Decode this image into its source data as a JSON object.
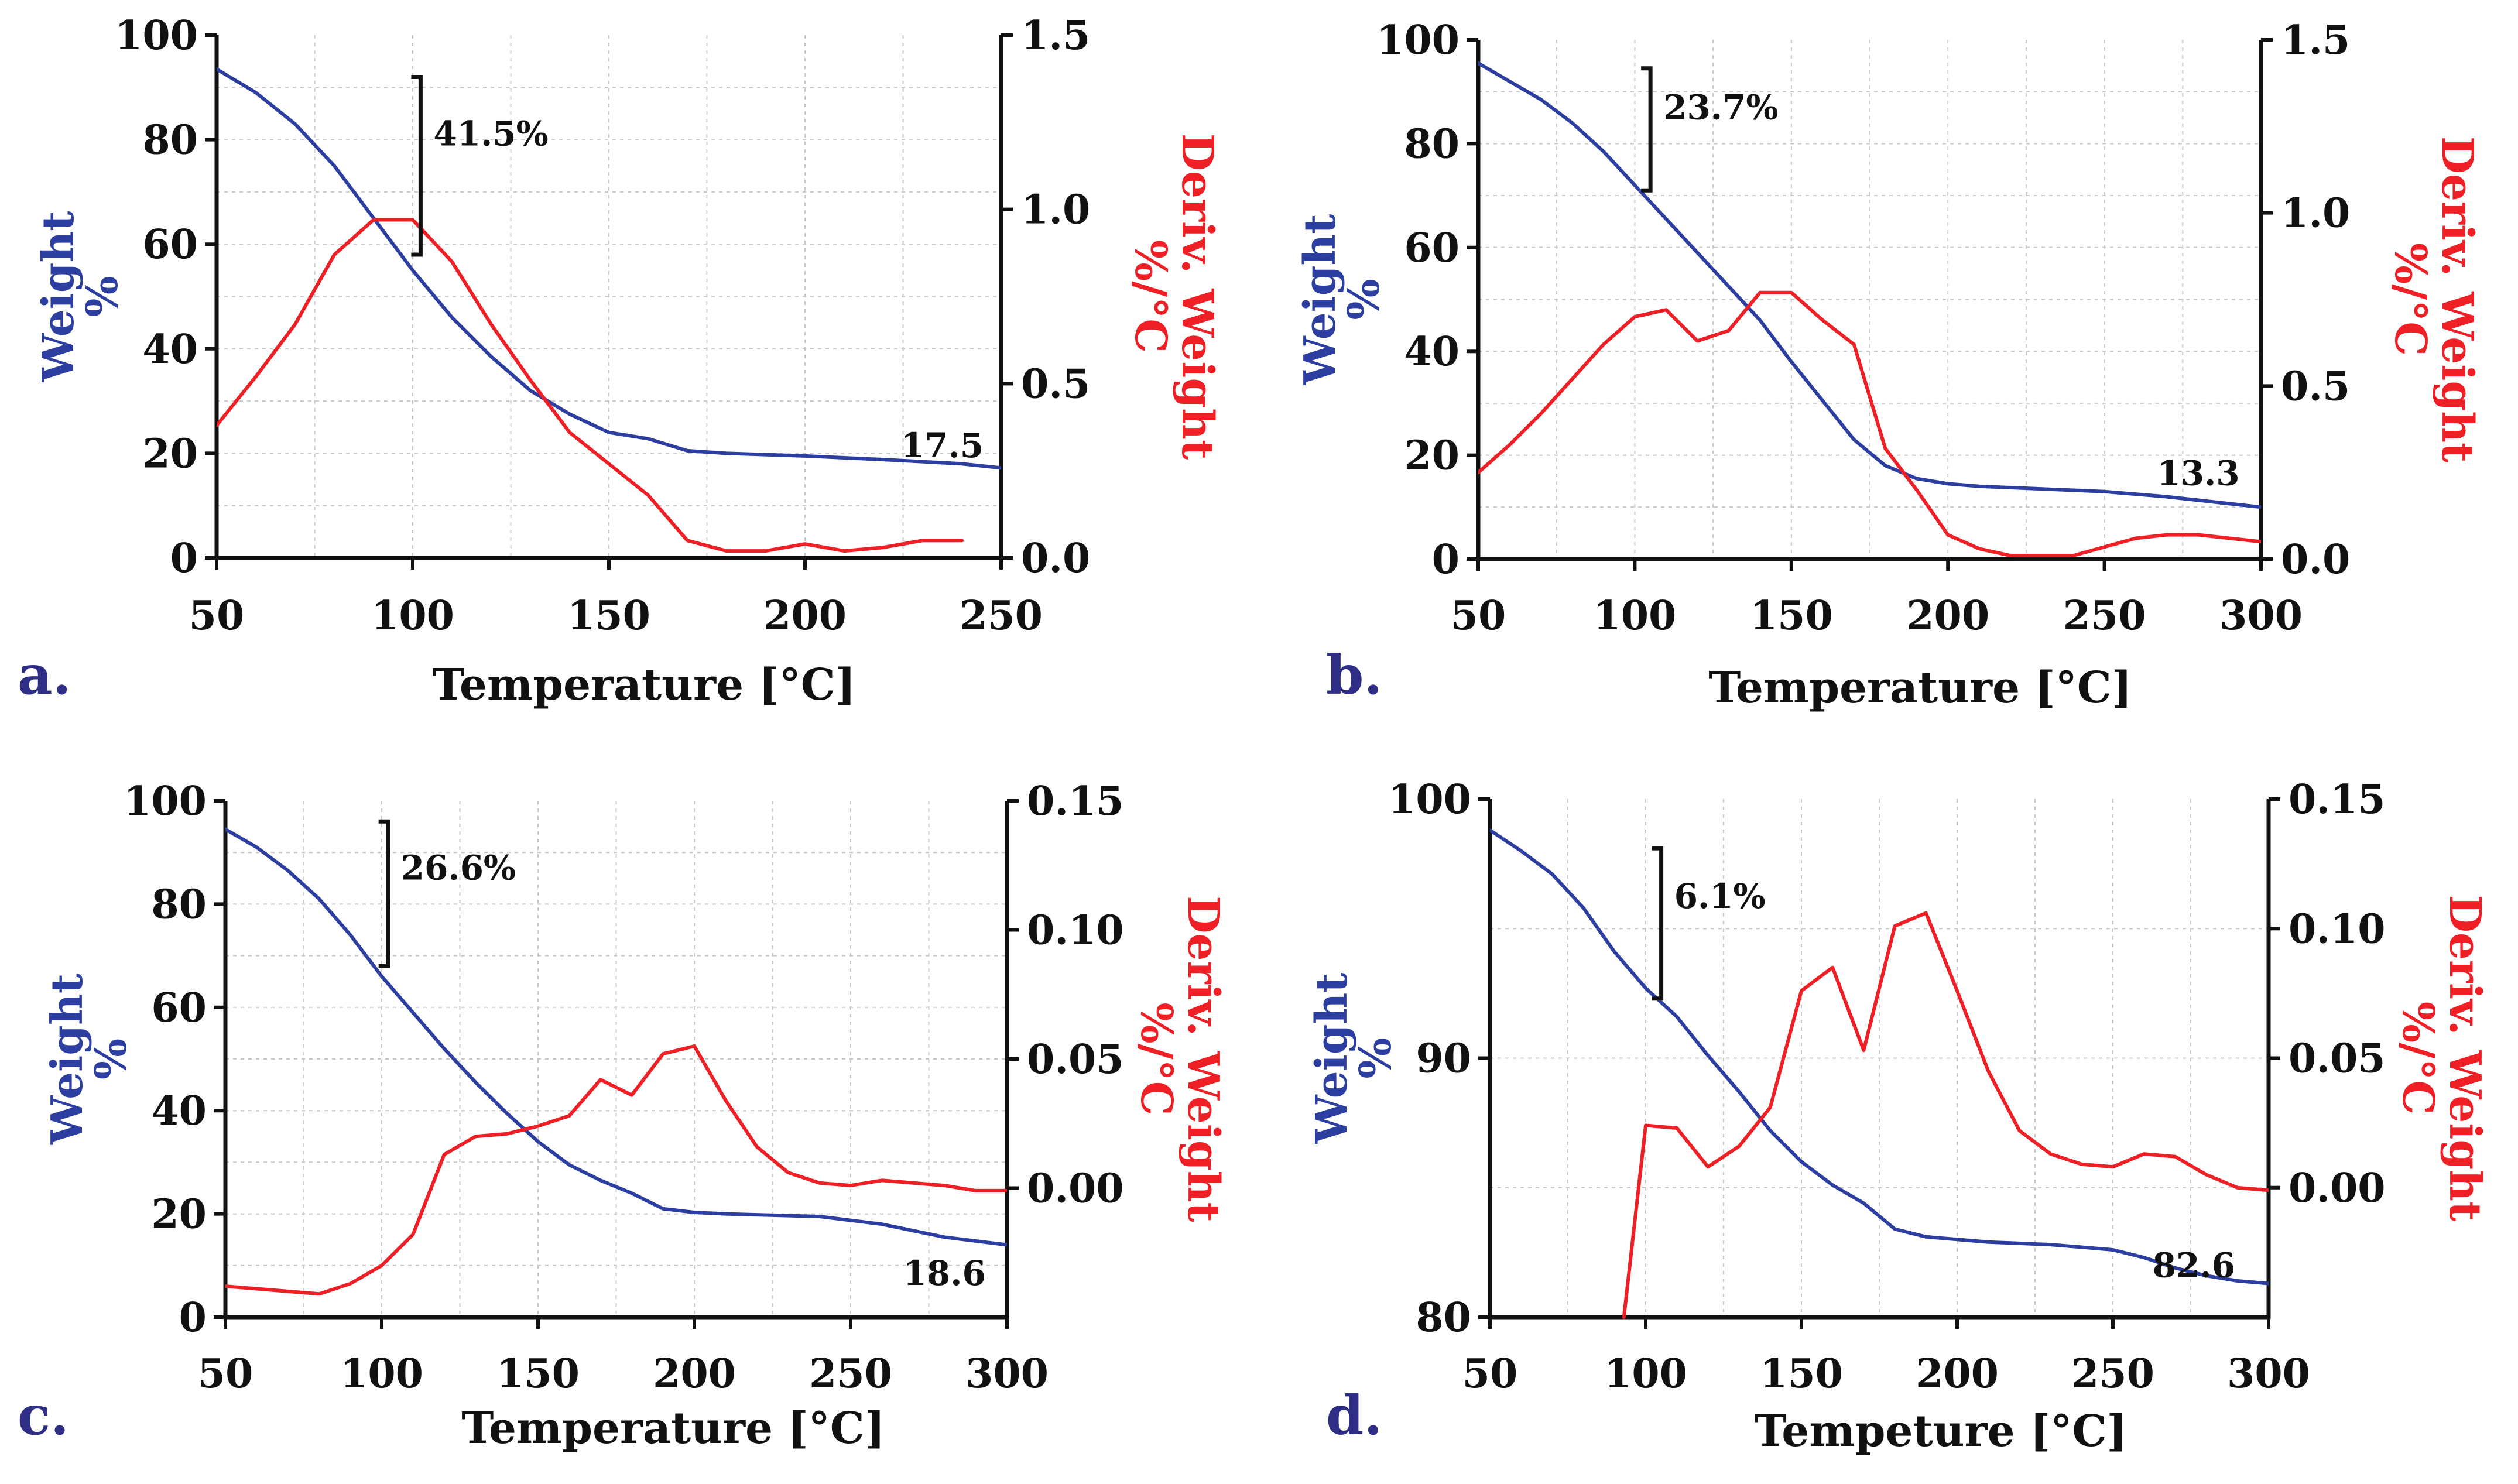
{
  "colors": {
    "weight": "#2c3fa0",
    "deriv": "#ee1f25",
    "letter": "#2e2e86",
    "axis": "#111111"
  },
  "chart_data": [
    {
      "id": "a",
      "type": "line",
      "letter": "a.",
      "xlabel": "Temperature [°C]",
      "ylabel_left": "Weight",
      "ylabel_left_unit": "%",
      "ylabel_right": "Deriv. Weight",
      "ylabel_right_unit": "%/°C",
      "xlim": [
        50,
        250
      ],
      "xticks": [
        50,
        100,
        150,
        200,
        250
      ],
      "ylim_left": [
        0,
        100
      ],
      "yticks_left": [
        0,
        20,
        40,
        60,
        80,
        100
      ],
      "ylim_right": [
        0,
        1.5
      ],
      "yticks_right": [
        "0.0",
        "0.5",
        "1.0",
        "1.5"
      ],
      "series": [
        {
          "name": "Weight",
          "axis": "left",
          "x": [
            50,
            60,
            70,
            80,
            90,
            100,
            110,
            120,
            130,
            140,
            150,
            160,
            170,
            180,
            200,
            220,
            240,
            250
          ],
          "y": [
            93.5,
            89,
            83,
            75,
            65,
            55,
            46,
            38.5,
            32,
            27.5,
            24,
            22.8,
            20.5,
            20,
            19.5,
            18.8,
            18,
            17.2
          ]
        },
        {
          "name": "Deriv. Weight",
          "axis": "right",
          "x": [
            50,
            60,
            70,
            80,
            90,
            100,
            110,
            120,
            130,
            140,
            150,
            160,
            170,
            180,
            190,
            200,
            210,
            220,
            230,
            240
          ],
          "y": [
            0.38,
            0.52,
            0.67,
            0.87,
            0.97,
            0.97,
            0.85,
            0.67,
            0.51,
            0.36,
            0.27,
            0.18,
            0.05,
            0.02,
            0.02,
            0.04,
            0.02,
            0.03,
            0.05,
            0.05
          ]
        }
      ],
      "mass_loss_label": "41.5%",
      "mass_loss_range_left": [
        58,
        92
      ],
      "mass_loss_x": 102,
      "residue_label": "17.5",
      "residue_x": 235,
      "residue_y": 21.5
    },
    {
      "id": "b",
      "type": "line",
      "letter": "b.",
      "xlabel": "Temperature [°C]",
      "ylabel_left": "Weight",
      "ylabel_left_unit": "%",
      "ylabel_right": "Deriv. Weight",
      "ylabel_right_unit": "%/°C",
      "xlim": [
        50,
        300
      ],
      "xticks": [
        50,
        100,
        150,
        200,
        250,
        300
      ],
      "ylim_left": [
        0,
        100
      ],
      "yticks_left": [
        0,
        20,
        40,
        60,
        80,
        100
      ],
      "ylim_right": [
        0,
        1.5
      ],
      "yticks_right": [
        "0.0",
        "0.5",
        "1.0",
        "1.5"
      ],
      "series": [
        {
          "name": "Weight",
          "axis": "left",
          "x": [
            50,
            60,
            70,
            80,
            90,
            100,
            110,
            120,
            130,
            140,
            150,
            160,
            170,
            180,
            190,
            200,
            210,
            250,
            270,
            300
          ],
          "y": [
            95.5,
            92,
            88.5,
            84,
            78.5,
            72,
            65.5,
            59,
            52.5,
            46,
            38,
            30.5,
            23,
            18,
            15.5,
            14.5,
            14,
            13,
            12,
            10
          ]
        },
        {
          "name": "Deriv. Weight",
          "axis": "right",
          "x": [
            50,
            60,
            70,
            80,
            90,
            100,
            110,
            120,
            130,
            140,
            150,
            160,
            170,
            180,
            190,
            200,
            210,
            220,
            240,
            260,
            270,
            280,
            300
          ],
          "y": [
            0.25,
            0.33,
            0.42,
            0.52,
            0.62,
            0.7,
            0.72,
            0.63,
            0.66,
            0.77,
            0.77,
            0.69,
            0.62,
            0.32,
            0.2,
            0.07,
            0.03,
            0.01,
            0.01,
            0.06,
            0.07,
            0.07,
            0.05
          ]
        }
      ],
      "mass_loss_label": "23.7%",
      "mass_loss_range_left": [
        71,
        94.5
      ],
      "mass_loss_x": 105,
      "residue_label": "13.3",
      "residue_x": 280,
      "residue_y": 16.5
    },
    {
      "id": "c",
      "type": "line",
      "letter": "c.",
      "xlabel": "Temperature [°C]",
      "ylabel_left": "Weight",
      "ylabel_left_unit": "%",
      "ylabel_right": "Deriv. Weight",
      "ylabel_right_unit": "%/°C",
      "xlim": [
        50,
        300
      ],
      "xticks": [
        50,
        100,
        150,
        200,
        250,
        300
      ],
      "ylim_left": [
        0,
        100
      ],
      "yticks_left": [
        0,
        20,
        40,
        60,
        80,
        100
      ],
      "ylim_right": [
        -0.05,
        0.15
      ],
      "yticks_right": [
        "0.00",
        "0.05",
        "0.10",
        "0.15"
      ],
      "series": [
        {
          "name": "Weight",
          "axis": "left",
          "x": [
            50,
            60,
            70,
            80,
            90,
            100,
            110,
            120,
            130,
            140,
            150,
            160,
            170,
            180,
            190,
            200,
            210,
            240,
            260,
            280,
            300
          ],
          "y": [
            94.5,
            91,
            86.5,
            81,
            74,
            66,
            59,
            52,
            45.5,
            39.5,
            34,
            29.5,
            26.5,
            24,
            21,
            20.3,
            20,
            19.5,
            18,
            15.5,
            14
          ]
        },
        {
          "name": "Deriv. Weight",
          "axis": "right",
          "x": [
            50,
            60,
            70,
            80,
            90,
            100,
            110,
            120,
            130,
            140,
            150,
            160,
            170,
            180,
            190,
            200,
            210,
            220,
            230,
            240,
            250,
            260,
            270,
            280,
            290,
            300
          ],
          "y": [
            -0.038,
            -0.039,
            -0.04,
            -0.041,
            -0.037,
            -0.03,
            -0.018,
            0.013,
            0.02,
            0.021,
            0.024,
            0.028,
            0.042,
            0.036,
            0.052,
            0.055,
            0.034,
            0.016,
            0.006,
            0.002,
            0.001,
            0.003,
            0.002,
            0.001,
            -0.001,
            -0.001
          ]
        }
      ],
      "mass_loss_label": "26.6%",
      "mass_loss_range_left": [
        68,
        96
      ],
      "mass_loss_x": 102,
      "residue_label": "18.6",
      "residue_x": 280,
      "residue_y": 8.5
    },
    {
      "id": "d",
      "type": "line",
      "letter": "d.",
      "xlabel": "Tempeture [°C]",
      "ylabel_left": "Weight",
      "ylabel_left_unit": "%",
      "ylabel_right": "Deriv. Weight",
      "ylabel_right_unit": "%/°C",
      "xlim": [
        50,
        300
      ],
      "xticks": [
        50,
        100,
        150,
        200,
        250,
        300
      ],
      "ylim_left": [
        80,
        100
      ],
      "yticks_left": [
        80,
        90,
        100
      ],
      "ylim_right": [
        -0.05,
        0.15
      ],
      "yticks_right": [
        "0.00",
        "0.05",
        "0.10",
        "0.15"
      ],
      "series": [
        {
          "name": "Weight",
          "axis": "left",
          "x": [
            50,
            60,
            70,
            80,
            90,
            100,
            110,
            120,
            130,
            140,
            150,
            160,
            170,
            180,
            190,
            200,
            210,
            220,
            230,
            240,
            250,
            260,
            270,
            280,
            290,
            300
          ],
          "y": [
            98.8,
            98.0,
            97.1,
            95.8,
            94.1,
            92.7,
            91.6,
            90.1,
            88.7,
            87.2,
            86.0,
            85.1,
            84.4,
            83.4,
            83.1,
            83.0,
            82.9,
            82.85,
            82.8,
            82.7,
            82.6,
            82.3,
            81.9,
            81.6,
            81.4,
            81.3
          ]
        },
        {
          "name": "Deriv. Weight",
          "axis": "right",
          "x": [
            93,
            100,
            110,
            120,
            130,
            140,
            150,
            160,
            170,
            180,
            190,
            200,
            210,
            220,
            230,
            240,
            250,
            260,
            270,
            280,
            290,
            300
          ],
          "y": [
            -0.05,
            0.024,
            0.023,
            0.008,
            0.016,
            0.031,
            0.076,
            0.085,
            0.053,
            0.101,
            0.106,
            0.076,
            0.045,
            0.022,
            0.013,
            0.009,
            0.008,
            0.013,
            0.012,
            0.005,
            0.0,
            -0.001
          ]
        }
      ],
      "mass_loss_label": "6.1%",
      "mass_loss_range_left": [
        92.3,
        98.1
      ],
      "mass_loss_x": 105,
      "residue_label": "82.6",
      "residue_x": 276,
      "residue_y": 82.0
    }
  ]
}
